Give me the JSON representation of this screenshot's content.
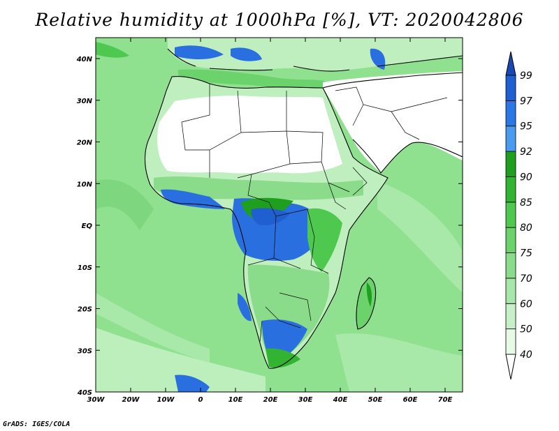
{
  "title": "Relative humidity at 1000hPa [%], VT: 2020042806",
  "credit": "GrADS: IGES/COLA",
  "map": {
    "lon_ticks": [
      "30W",
      "20W",
      "10W",
      "0",
      "10E",
      "20E",
      "30E",
      "40E",
      "50E",
      "60E",
      "70E"
    ],
    "lat_ticks": [
      "40N",
      "30N",
      "20N",
      "10N",
      "EQ",
      "10S",
      "20S",
      "30S",
      "40S"
    ]
  },
  "colorbar": {
    "levels": [
      "40",
      "50",
      "60",
      "70",
      "75",
      "80",
      "85",
      "90",
      "92",
      "95",
      "97",
      "99"
    ],
    "colors": [
      "#ffffff",
      "#e6fae6",
      "#c8f0c8",
      "#a9e6a9",
      "#8adc8a",
      "#6cd26c",
      "#4ec84e",
      "#32b432",
      "#1ea01e",
      "#4a9aef",
      "#2a78e6",
      "#1f5fd0",
      "#1848b4"
    ]
  },
  "colors": {
    "ocean": "#8fe08f",
    "land_dry": "#ffffff",
    "land_moist": "#bfeebf",
    "very_humid": "#2a6fe0",
    "humid": "#3cbc3c",
    "border": "#000000"
  }
}
